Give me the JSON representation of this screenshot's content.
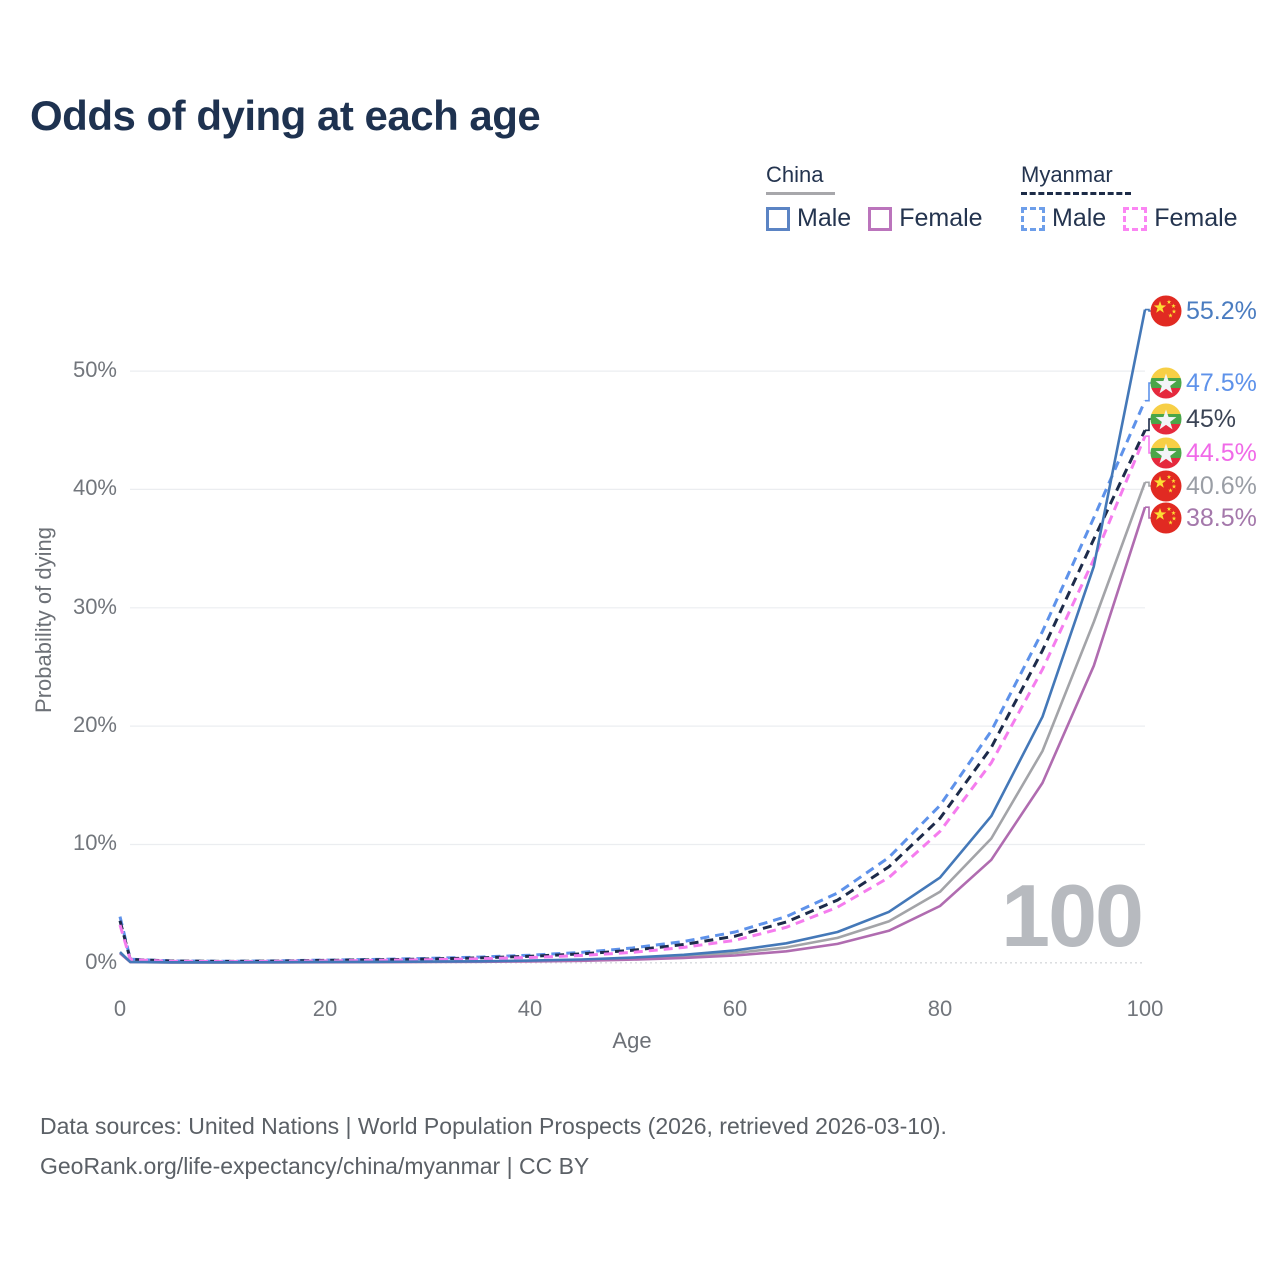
{
  "title": "Odds of dying at each age",
  "legend": {
    "groups": [
      {
        "title": "China",
        "line_style": "solid",
        "line_color": "#a7a7ab",
        "items": [
          {
            "label": "Male",
            "color": "#5b84c4"
          },
          {
            "label": "Female",
            "color": "#bb74bc"
          }
        ]
      },
      {
        "title": "Myanmar",
        "line_style": "dashed",
        "line_color": "#1c2b47",
        "items": [
          {
            "label": "Male",
            "color": "#6d9eea"
          },
          {
            "label": "Female",
            "color": "#fb85f3"
          }
        ]
      }
    ]
  },
  "chart_data": {
    "type": "line",
    "title": "Odds of dying at each age",
    "xlabel": "Age",
    "ylabel": "Probability of dying",
    "xlim": [
      0,
      100
    ],
    "ylim": [
      0,
      57
    ],
    "grid": "horizontal",
    "legend_position": "top-right",
    "x_ticks": [
      0,
      20,
      40,
      60,
      80,
      100
    ],
    "x_tick_labels": [
      "0",
      "20",
      "40",
      "60",
      "80",
      "100"
    ],
    "y_tick_values": [
      0,
      10,
      20,
      30,
      40,
      50
    ],
    "y_tick_labels": [
      "0%",
      "10%",
      "20%",
      "30%",
      "40%",
      "50%"
    ],
    "ages": [
      0,
      1,
      5,
      10,
      15,
      20,
      25,
      30,
      35,
      40,
      45,
      50,
      55,
      60,
      65,
      70,
      75,
      80,
      85,
      90,
      95,
      100
    ],
    "series": [
      {
        "id": "china-male",
        "name": "China Male",
        "country": "China",
        "sex": "Male",
        "color": "#4478b8",
        "label_color": "#4a7cc0",
        "dash": null,
        "flag": "china",
        "end_label": "55.2%",
        "values": [
          0.9,
          0.07,
          0.04,
          0.04,
          0.05,
          0.07,
          0.08,
          0.1,
          0.13,
          0.19,
          0.28,
          0.44,
          0.68,
          1.05,
          1.65,
          2.6,
          4.3,
          7.2,
          12.4,
          20.8,
          33.5,
          55.2
        ]
      },
      {
        "id": "myanmar-male",
        "name": "Myanmar Male",
        "country": "Myanmar",
        "sex": "Male",
        "color": "#5e92ea",
        "label_color": "#5e92ea",
        "dash": [
          9,
          6
        ],
        "flag": "myanmar",
        "end_label": "47.5%",
        "values": [
          3.9,
          0.3,
          0.16,
          0.13,
          0.16,
          0.23,
          0.29,
          0.37,
          0.48,
          0.64,
          0.88,
          1.25,
          1.8,
          2.6,
          3.9,
          5.9,
          8.9,
          13.3,
          19.6,
          28,
          37.6,
          47.5
        ]
      },
      {
        "id": "myanmar-both",
        "name": "Myanmar (both sexes)",
        "country": "Myanmar",
        "sex": "Both",
        "color": "#1d2b4a",
        "label_color": "#3a4354",
        "dash": [
          9,
          6
        ],
        "flag": "myanmar",
        "end_label": "45%",
        "values": [
          3.55,
          0.28,
          0.15,
          0.12,
          0.14,
          0.2,
          0.25,
          0.32,
          0.41,
          0.55,
          0.75,
          1.06,
          1.55,
          2.25,
          3.45,
          5.3,
          8.1,
          12.2,
          18.2,
          26.4,
          35.8,
          45
        ]
      },
      {
        "id": "myanmar-female",
        "name": "Myanmar Female",
        "country": "Myanmar",
        "sex": "Female",
        "color": "#f57cee",
        "label_color": "#f06ae8",
        "dash": [
          9,
          6
        ],
        "flag": "myanmar",
        "end_label": "44.5%",
        "values": [
          3.2,
          0.26,
          0.13,
          0.1,
          0.12,
          0.16,
          0.2,
          0.26,
          0.34,
          0.45,
          0.62,
          0.88,
          1.3,
          1.9,
          3,
          4.7,
          7.2,
          11.1,
          16.9,
          24.8,
          34.1,
          44.5
        ]
      },
      {
        "id": "china-both",
        "name": "China (both sexes)",
        "country": "China",
        "sex": "Both",
        "color": "#a3a4a8",
        "label_color": "#9a9ea5",
        "dash": null,
        "flag": "china",
        "end_label": "40.6%",
        "values": [
          0.85,
          0.06,
          0.035,
          0.035,
          0.045,
          0.06,
          0.07,
          0.085,
          0.11,
          0.15,
          0.23,
          0.35,
          0.54,
          0.83,
          1.3,
          2.1,
          3.5,
          6,
          10.5,
          17.9,
          28.8,
          40.6
        ]
      },
      {
        "id": "china-female",
        "name": "China Female",
        "country": "China",
        "sex": "Female",
        "color": "#b06cb0",
        "label_color": "#a478ab",
        "dash": null,
        "flag": "china",
        "end_label": "38.5%",
        "values": [
          0.8,
          0.055,
          0.03,
          0.03,
          0.035,
          0.045,
          0.05,
          0.065,
          0.085,
          0.12,
          0.17,
          0.27,
          0.41,
          0.62,
          0.97,
          1.6,
          2.7,
          4.8,
          8.7,
          15.2,
          25.1,
          38.5
        ]
      }
    ],
    "hover_age_watermark": "100"
  },
  "footer": {
    "line1": "Data sources: United Nations | World Population Prospects (2026, retrieved 2026-03-10).",
    "line2": "GeoRank.org/life-expectancy/china/myanmar | CC BY"
  }
}
